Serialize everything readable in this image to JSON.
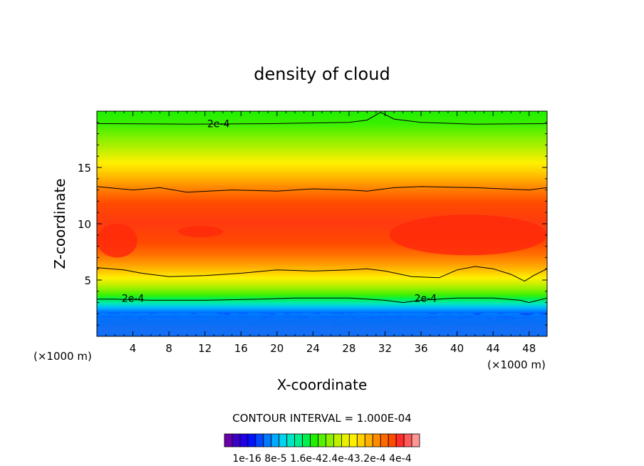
{
  "chart_data": {
    "type": "heatmap",
    "title": "density of cloud",
    "xlabel": "X-coordinate",
    "ylabel": "Z-coordinate",
    "x_unit": "(×1000 m)",
    "z_unit": "(×1000 m)",
    "xlim": [
      0,
      50
    ],
    "ylim": [
      0,
      20
    ],
    "x_ticks": [
      4,
      8,
      12,
      16,
      20,
      24,
      28,
      32,
      36,
      40,
      44,
      48
    ],
    "y_ticks": [
      5,
      10,
      15
    ],
    "contour_interval_text": "CONTOUR INTERVAL = 1.000E-04",
    "contour_labels": [
      {
        "text": "2e-4",
        "x": 13.5,
        "z": 18.9
      },
      {
        "text": "2e-4",
        "x": 4.0,
        "z": 3.4
      },
      {
        "text": "2e-4",
        "x": 36.5,
        "z": 3.4
      }
    ],
    "colorbar_labels": [
      "1e-16",
      "8e-5",
      "1.6e-4",
      "2.4e-4",
      "3.2e-4",
      "4e-4"
    ],
    "colorbar_label_text": "1e-16 8e-5 1.6e-42.4e-43.2e-4 4e-4",
    "colorbar_colors": [
      "#6a00a8",
      "#3a00c8",
      "#2000e6",
      "#0012ff",
      "#0046ff",
      "#0078ff",
      "#00aaff",
      "#00d2f0",
      "#00e6c0",
      "#00ee90",
      "#00f050",
      "#20f000",
      "#56f000",
      "#8cf000",
      "#bef000",
      "#e8f000",
      "#fff000",
      "#ffd200",
      "#ffb000",
      "#ff8c00",
      "#ff6a00",
      "#ff4a00",
      "#ff2a2a",
      "#ff5a5a",
      "#ff9696"
    ],
    "profile": [
      {
        "z": 0.8,
        "color": "#7a00b0"
      },
      {
        "z": 1.3,
        "color": "#3a00c8"
      },
      {
        "z": 1.7,
        "color": "#0012ff"
      },
      {
        "z": 2.1,
        "color": "#0068ff"
      },
      {
        "z": 2.5,
        "color": "#00b4ff"
      },
      {
        "z": 2.9,
        "color": "#00e6c0"
      },
      {
        "z": 3.3,
        "color": "#00f050"
      },
      {
        "z": 3.7,
        "color": "#40f000"
      },
      {
        "z": 4.2,
        "color": "#90f000"
      },
      {
        "z": 4.7,
        "color": "#d0f000"
      },
      {
        "z": 5.2,
        "color": "#fff000"
      },
      {
        "z": 5.6,
        "color": "#ffd200"
      },
      {
        "z": 6.1,
        "color": "#ffb000"
      },
      {
        "z": 6.7,
        "color": "#ff8c00"
      },
      {
        "z": 7.4,
        "color": "#ff6a00"
      },
      {
        "z": 8.3,
        "color": "#ff4a00"
      },
      {
        "z": 10.0,
        "color": "#ff3a10"
      },
      {
        "z": 11.8,
        "color": "#ff4a00"
      },
      {
        "z": 12.6,
        "color": "#ff6a00"
      },
      {
        "z": 13.3,
        "color": "#ff8c00"
      },
      {
        "z": 14.0,
        "color": "#ffb000"
      },
      {
        "z": 14.7,
        "color": "#ffd200"
      },
      {
        "z": 15.4,
        "color": "#fff000"
      },
      {
        "z": 16.1,
        "color": "#d8f000"
      },
      {
        "z": 16.8,
        "color": "#b0f000"
      },
      {
        "z": 17.5,
        "color": "#8cf000"
      },
      {
        "z": 18.2,
        "color": "#60f000"
      },
      {
        "z": 18.9,
        "color": "#38f000"
      },
      {
        "z": 20.0,
        "color": "#20f000"
      }
    ],
    "red_core_regions": [
      {
        "x0": 0,
        "x1": 4.5,
        "z0": 7.0,
        "z1": 10.0
      },
      {
        "x0": 32.5,
        "x1": 50,
        "z0": 7.2,
        "z1": 10.8
      },
      {
        "x0": 9,
        "x1": 14,
        "z0": 8.8,
        "z1": 9.8
      }
    ],
    "contours": [
      {
        "name": "contour-top-2e-4",
        "points": [
          [
            0,
            18.9
          ],
          [
            10,
            18.85
          ],
          [
            20,
            18.9
          ],
          [
            28,
            19.0
          ],
          [
            30,
            19.2
          ],
          [
            31.5,
            19.9
          ],
          [
            33,
            19.3
          ],
          [
            36,
            19.0
          ],
          [
            42,
            18.85
          ],
          [
            50,
            18.9
          ]
        ]
      },
      {
        "name": "contour-upper",
        "points": [
          [
            0,
            13.3
          ],
          [
            4,
            13.0
          ],
          [
            7,
            13.2
          ],
          [
            10,
            12.8
          ],
          [
            15,
            13.0
          ],
          [
            20,
            12.9
          ],
          [
            24,
            13.1
          ],
          [
            28,
            13.0
          ],
          [
            30,
            12.9
          ],
          [
            33,
            13.2
          ],
          [
            36,
            13.3
          ],
          [
            42,
            13.2
          ],
          [
            48,
            13.0
          ],
          [
            50,
            13.2
          ]
        ]
      },
      {
        "name": "contour-lower",
        "points": [
          [
            0,
            6.1
          ],
          [
            3,
            5.9
          ],
          [
            5,
            5.6
          ],
          [
            8,
            5.3
          ],
          [
            12,
            5.4
          ],
          [
            16,
            5.6
          ],
          [
            20,
            5.9
          ],
          [
            24,
            5.8
          ],
          [
            28,
            5.9
          ],
          [
            30,
            6.0
          ],
          [
            32,
            5.8
          ],
          [
            35,
            5.3
          ],
          [
            38,
            5.2
          ],
          [
            40,
            5.9
          ],
          [
            42,
            6.2
          ],
          [
            44,
            6.0
          ],
          [
            46,
            5.5
          ],
          [
            47.5,
            4.9
          ],
          [
            48.5,
            5.4
          ],
          [
            50,
            6.0
          ]
        ]
      },
      {
        "name": "contour-bottom-2e-4",
        "points": [
          [
            0,
            3.3
          ],
          [
            2,
            3.3
          ],
          [
            6,
            3.2
          ],
          [
            12,
            3.2
          ],
          [
            18,
            3.3
          ],
          [
            22,
            3.4
          ],
          [
            28,
            3.4
          ],
          [
            32,
            3.2
          ],
          [
            34,
            3.0
          ],
          [
            36,
            3.2
          ],
          [
            40,
            3.4
          ],
          [
            44,
            3.4
          ],
          [
            47,
            3.2
          ],
          [
            48,
            3.0
          ],
          [
            50,
            3.4
          ]
        ]
      }
    ]
  }
}
